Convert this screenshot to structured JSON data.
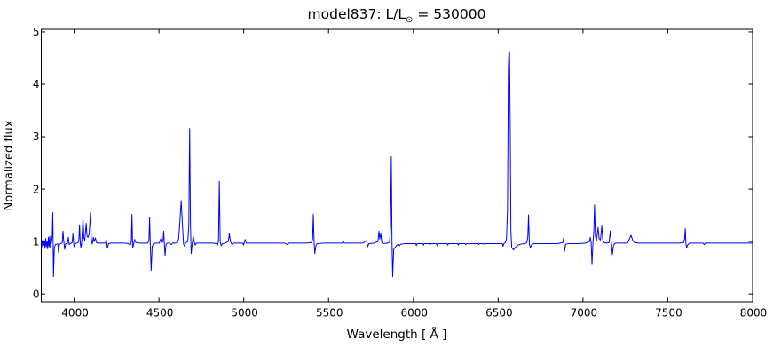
{
  "title": {
    "pre": "model837: L/L",
    "sub": "⊙",
    "post": " = 530000"
  },
  "chart_data": {
    "type": "line",
    "title": "model837: L/L⊙ = 530000",
    "xlabel": "Wavelength [ Å ]",
    "ylabel": "Normalized flux",
    "xlim": [
      3806,
      8000
    ],
    "ylim": [
      -0.15,
      5.05
    ],
    "xticks": [
      4000,
      4500,
      5000,
      5500,
      6000,
      6500,
      7000,
      7500,
      8000
    ],
    "yticks": [
      0,
      1,
      2,
      3,
      4,
      5
    ],
    "grid": false,
    "legend": null,
    "series": [
      {
        "name": "normalized-flux-spectrum",
        "color": "#0000ff",
        "points": [
          [
            3806,
            0.93
          ],
          [
            3810,
            1.02
          ],
          [
            3813,
            0.9
          ],
          [
            3817,
            1.04
          ],
          [
            3821,
            0.93
          ],
          [
            3825,
            1.0
          ],
          [
            3828,
            0.87
          ],
          [
            3832,
            1.06
          ],
          [
            3836,
            0.9
          ],
          [
            3840,
            1.0
          ],
          [
            3844,
            0.86
          ],
          [
            3848,
            1.08
          ],
          [
            3852,
            0.9
          ],
          [
            3856,
            1.1
          ],
          [
            3860,
            0.88
          ],
          [
            3864,
            0.96
          ],
          [
            3868,
            1.02
          ],
          [
            3871,
            1.12
          ],
          [
            3874,
            1.55
          ],
          [
            3878,
            0.33
          ],
          [
            3883,
            0.88
          ],
          [
            3889,
            0.94
          ],
          [
            3898,
            0.95
          ],
          [
            3904,
            0.95
          ],
          [
            3908,
            0.79
          ],
          [
            3913,
            0.95
          ],
          [
            3922,
            0.96
          ],
          [
            3930,
            0.98
          ],
          [
            3934,
            1.2
          ],
          [
            3939,
            1.0
          ],
          [
            3944,
            0.85
          ],
          [
            3950,
            0.96
          ],
          [
            3960,
            0.96
          ],
          [
            3966,
            1.08
          ],
          [
            3971,
            0.94
          ],
          [
            3978,
            0.96
          ],
          [
            3988,
            0.98
          ],
          [
            3993,
            1.15
          ],
          [
            3999,
            0.9
          ],
          [
            4006,
            0.96
          ],
          [
            4016,
            0.97
          ],
          [
            4024,
            0.98
          ],
          [
            4028,
            1.05
          ],
          [
            4032,
            1.32
          ],
          [
            4036,
            0.97
          ],
          [
            4040,
            0.88
          ],
          [
            4045,
            1.0
          ],
          [
            4052,
            1.45
          ],
          [
            4057,
            1.08
          ],
          [
            4063,
            1.02
          ],
          [
            4071,
            1.35
          ],
          [
            4076,
            1.1
          ],
          [
            4082,
            1.08
          ],
          [
            4089,
            1.15
          ],
          [
            4096,
            1.55
          ],
          [
            4101,
            1.05
          ],
          [
            4107,
            0.95
          ],
          [
            4113,
            1.08
          ],
          [
            4118,
            1.0
          ],
          [
            4125,
            1.07
          ],
          [
            4132,
            0.98
          ],
          [
            4141,
            0.97
          ],
          [
            4160,
            0.97
          ],
          [
            4184,
            0.97
          ],
          [
            4190,
            1.03
          ],
          [
            4196,
            0.87
          ],
          [
            4203,
            0.96
          ],
          [
            4218,
            0.97
          ],
          [
            4255,
            0.97
          ],
          [
            4295,
            0.97
          ],
          [
            4320,
            0.96
          ],
          [
            4331,
            0.93
          ],
          [
            4337,
            1.0
          ],
          [
            4341,
            1.52
          ],
          [
            4345,
            0.88
          ],
          [
            4351,
            0.95
          ],
          [
            4357,
            1.04
          ],
          [
            4364,
            0.98
          ],
          [
            4382,
            0.97
          ],
          [
            4415,
            0.97
          ],
          [
            4434,
            0.97
          ],
          [
            4441,
            1.02
          ],
          [
            4445,
            1.46
          ],
          [
            4449,
            0.95
          ],
          [
            4454,
            0.45
          ],
          [
            4460,
            0.9
          ],
          [
            4467,
            0.96
          ],
          [
            4480,
            0.97
          ],
          [
            4502,
            0.97
          ],
          [
            4510,
            1.05
          ],
          [
            4516,
            0.97
          ],
          [
            4524,
            1.0
          ],
          [
            4528,
            1.2
          ],
          [
            4532,
            0.95
          ],
          [
            4536,
            0.73
          ],
          [
            4542,
            0.95
          ],
          [
            4550,
            0.97
          ],
          [
            4562,
            0.97
          ],
          [
            4572,
            0.94
          ],
          [
            4580,
            0.97
          ],
          [
            4598,
            0.97
          ],
          [
            4609,
            0.98
          ],
          [
            4616,
            1.05
          ],
          [
            4624,
            1.4
          ],
          [
            4631,
            1.78
          ],
          [
            4638,
            1.35
          ],
          [
            4645,
            0.95
          ],
          [
            4650,
            0.91
          ],
          [
            4657,
            0.97
          ],
          [
            4664,
            0.99
          ],
          [
            4670,
            1.0
          ],
          [
            4676,
            1.3
          ],
          [
            4681,
            3.16
          ],
          [
            4686,
            1.3
          ],
          [
            4690,
            0.77
          ],
          [
            4696,
            0.95
          ],
          [
            4702,
            1.1
          ],
          [
            4708,
            1.0
          ],
          [
            4714,
            0.93
          ],
          [
            4721,
            0.97
          ],
          [
            4740,
            0.97
          ],
          [
            4780,
            0.97
          ],
          [
            4820,
            0.97
          ],
          [
            4838,
            0.96
          ],
          [
            4845,
            0.93
          ],
          [
            4851,
            1.0
          ],
          [
            4856,
            2.15
          ],
          [
            4861,
            1.0
          ],
          [
            4867,
            0.92
          ],
          [
            4875,
            0.96
          ],
          [
            4890,
            0.97
          ],
          [
            4909,
            1.0
          ],
          [
            4915,
            1.15
          ],
          [
            4922,
            1.0
          ],
          [
            4929,
            0.95
          ],
          [
            4941,
            0.97
          ],
          [
            4970,
            0.97
          ],
          [
            4994,
            0.97
          ],
          [
            4999,
            0.93
          ],
          [
            5008,
            1.04
          ],
          [
            5015,
            0.97
          ],
          [
            5060,
            0.97
          ],
          [
            5120,
            0.97
          ],
          [
            5180,
            0.97
          ],
          [
            5242,
            0.97
          ],
          [
            5258,
            0.94
          ],
          [
            5266,
            0.97
          ],
          [
            5320,
            0.97
          ],
          [
            5372,
            0.97
          ],
          [
            5399,
            0.98
          ],
          [
            5406,
            1.05
          ],
          [
            5410,
            1.52
          ],
          [
            5415,
            0.95
          ],
          [
            5419,
            0.77
          ],
          [
            5426,
            0.93
          ],
          [
            5434,
            0.96
          ],
          [
            5470,
            0.97
          ],
          [
            5530,
            0.97
          ],
          [
            5582,
            0.97
          ],
          [
            5587,
            1.01
          ],
          [
            5593,
            0.97
          ],
          [
            5650,
            0.97
          ],
          [
            5702,
            0.97
          ],
          [
            5724,
            1.02
          ],
          [
            5731,
            0.9
          ],
          [
            5738,
            0.96
          ],
          [
            5770,
            0.97
          ],
          [
            5791,
            1.0
          ],
          [
            5797,
            1.2
          ],
          [
            5802,
            1.05
          ],
          [
            5808,
            1.15
          ],
          [
            5814,
            0.98
          ],
          [
            5824,
            0.96
          ],
          [
            5848,
            0.97
          ],
          [
            5860,
            0.99
          ],
          [
            5865,
            1.3
          ],
          [
            5870,
            2.62
          ],
          [
            5874,
            1.0
          ],
          [
            5878,
            0.33
          ],
          [
            5884,
            0.85
          ],
          [
            5893,
            0.89
          ],
          [
            5903,
            0.93
          ],
          [
            5912,
            0.95
          ],
          [
            5918,
            0.92
          ],
          [
            5926,
            0.95
          ],
          [
            5955,
            0.96
          ],
          [
            6014,
            0.96
          ],
          [
            6018,
            0.92
          ],
          [
            6022,
            0.96
          ],
          [
            6056,
            0.96
          ],
          [
            6060,
            0.93
          ],
          [
            6064,
            0.96
          ],
          [
            6094,
            0.96
          ],
          [
            6098,
            0.93
          ],
          [
            6102,
            0.96
          ],
          [
            6136,
            0.96
          ],
          [
            6140,
            0.92
          ],
          [
            6144,
            0.96
          ],
          [
            6199,
            0.96
          ],
          [
            6203,
            0.93
          ],
          [
            6207,
            0.96
          ],
          [
            6262,
            0.96
          ],
          [
            6266,
            0.93
          ],
          [
            6270,
            0.96
          ],
          [
            6304,
            0.96
          ],
          [
            6308,
            0.94
          ],
          [
            6312,
            0.96
          ],
          [
            6382,
            0.96
          ],
          [
            6386,
            0.94
          ],
          [
            6390,
            0.96
          ],
          [
            6408,
            0.96
          ],
          [
            6412,
            0.95
          ],
          [
            6416,
            0.96
          ],
          [
            6460,
            0.96
          ],
          [
            6500,
            0.96
          ],
          [
            6524,
            0.96
          ],
          [
            6529,
            0.91
          ],
          [
            6534,
            0.96
          ],
          [
            6542,
            0.98
          ],
          [
            6549,
            1.05
          ],
          [
            6555,
            1.6
          ],
          [
            6560,
            4.3
          ],
          [
            6563,
            4.61
          ],
          [
            6567,
            4.61
          ],
          [
            6571,
            3.2
          ],
          [
            6575,
            1.2
          ],
          [
            6580,
            0.88
          ],
          [
            6590,
            0.84
          ],
          [
            6602,
            0.89
          ],
          [
            6616,
            0.93
          ],
          [
            6632,
            0.95
          ],
          [
            6656,
            0.96
          ],
          [
            6669,
            0.98
          ],
          [
            6675,
            1.1
          ],
          [
            6679,
            1.51
          ],
          [
            6684,
            0.95
          ],
          [
            6690,
            0.88
          ],
          [
            6698,
            0.94
          ],
          [
            6710,
            0.96
          ],
          [
            6750,
            0.96
          ],
          [
            6800,
            0.96
          ],
          [
            6852,
            0.96
          ],
          [
            6881,
            0.98
          ],
          [
            6886,
            1.07
          ],
          [
            6891,
            0.81
          ],
          [
            6898,
            0.95
          ],
          [
            6918,
            0.96
          ],
          [
            6970,
            0.96
          ],
          [
            7014,
            0.97
          ],
          [
            7038,
            1.0
          ],
          [
            7043,
            1.08
          ],
          [
            7048,
            0.98
          ],
          [
            7053,
            0.56
          ],
          [
            7059,
            1.0
          ],
          [
            7064,
            1.2
          ],
          [
            7068,
            1.7
          ],
          [
            7073,
            1.1
          ],
          [
            7080,
            1.02
          ],
          [
            7089,
            1.27
          ],
          [
            7095,
            1.06
          ],
          [
            7103,
            1.03
          ],
          [
            7111,
            1.3
          ],
          [
            7117,
            1.02
          ],
          [
            7126,
            0.98
          ],
          [
            7138,
            0.97
          ],
          [
            7154,
            0.98
          ],
          [
            7161,
            1.2
          ],
          [
            7168,
            0.95
          ],
          [
            7173,
            0.75
          ],
          [
            7180,
            0.93
          ],
          [
            7190,
            0.97
          ],
          [
            7220,
            0.97
          ],
          [
            7262,
            0.97
          ],
          [
            7274,
            1.05
          ],
          [
            7283,
            1.12
          ],
          [
            7294,
            1.02
          ],
          [
            7305,
            0.98
          ],
          [
            7330,
            0.97
          ],
          [
            7390,
            0.97
          ],
          [
            7450,
            0.97
          ],
          [
            7510,
            0.97
          ],
          [
            7572,
            0.97
          ],
          [
            7594,
            0.98
          ],
          [
            7599,
            1.05
          ],
          [
            7603,
            1.25
          ],
          [
            7607,
            0.95
          ],
          [
            7611,
            0.88
          ],
          [
            7618,
            0.94
          ],
          [
            7630,
            0.97
          ],
          [
            7672,
            0.97
          ],
          [
            7708,
            0.97
          ],
          [
            7714,
            0.94
          ],
          [
            7722,
            0.97
          ],
          [
            7770,
            0.97
          ],
          [
            7840,
            0.97
          ],
          [
            7910,
            0.97
          ],
          [
            8000,
            0.97
          ]
        ]
      }
    ]
  }
}
